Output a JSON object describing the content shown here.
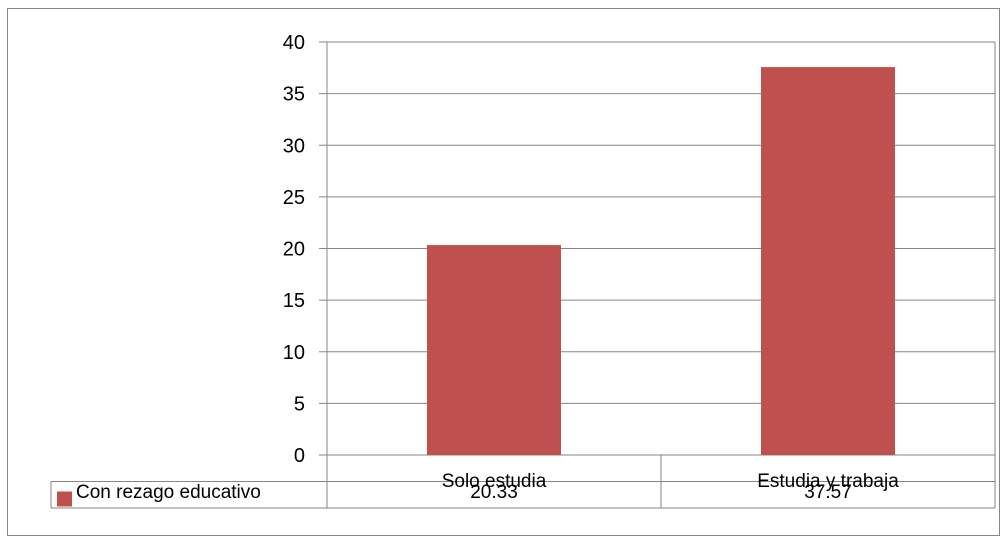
{
  "chart_data": {
    "type": "bar",
    "categories": [
      "Solo estudia",
      "Estudia y trabaja"
    ],
    "series": [
      {
        "name": "Con rezago educativo",
        "values": [
          20.33,
          37.57
        ],
        "value_labels": [
          "20.33",
          "37.57"
        ],
        "color": "#C0504D"
      }
    ],
    "ylim": [
      0,
      40
    ],
    "yticks": [
      0,
      5,
      10,
      15,
      20,
      25,
      30,
      35,
      40
    ],
    "grid": true,
    "legend": "data-table",
    "colors": {
      "bar": "#C0504D",
      "grid": "#868686",
      "axis": "#868686"
    }
  }
}
